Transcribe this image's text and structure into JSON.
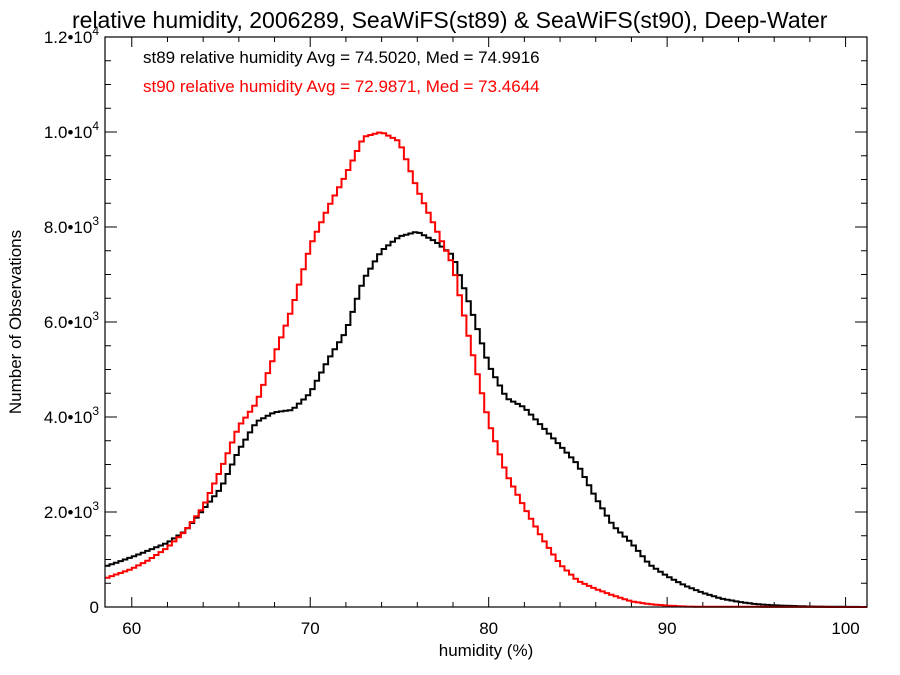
{
  "chart_data": {
    "type": "step",
    "title": "relative humidity, 2006289, SeaWiFS(st89) & SeaWiFS(st90), Deep-Water",
    "xlabel": "humidity (%)",
    "ylabel": "Number of Observations",
    "xlim": [
      58.5,
      101.2
    ],
    "ylim": [
      0,
      12000
    ],
    "x_ticks": [
      {
        "value": 60,
        "label": "60"
      },
      {
        "value": 70,
        "label": "70"
      },
      {
        "value": 80,
        "label": "80"
      },
      {
        "value": 90,
        "label": "90"
      },
      {
        "value": 100,
        "label": "100"
      }
    ],
    "y_ticks": [
      {
        "value": 0,
        "label": "0"
      },
      {
        "value": 2000,
        "mant": "2.0•10",
        "exp": "3"
      },
      {
        "value": 4000,
        "mant": "4.0•10",
        "exp": "3"
      },
      {
        "value": 6000,
        "mant": "6.0•10",
        "exp": "3"
      },
      {
        "value": 8000,
        "mant": "8.0•10",
        "exp": "3"
      },
      {
        "value": 10000,
        "mant": "1.0•10",
        "exp": "4"
      },
      {
        "value": 12000,
        "mant": "1.2•10",
        "exp": "4"
      }
    ],
    "bin_width": 0.25,
    "series": [
      {
        "name": "st89",
        "color": "#000000",
        "annotation": "st89 relative humidity Avg = 74.5020, Med = 74.9916",
        "points": [
          [
            58.5,
            850
          ],
          [
            60,
            1050
          ],
          [
            62,
            1350
          ],
          [
            63,
            1600
          ],
          [
            64,
            2050
          ],
          [
            65,
            2500
          ],
          [
            66,
            3300
          ],
          [
            67,
            3900
          ],
          [
            68,
            4100
          ],
          [
            69,
            4150
          ],
          [
            70,
            4500
          ],
          [
            71,
            5200
          ],
          [
            72,
            5800
          ],
          [
            73,
            6900
          ],
          [
            74,
            7500
          ],
          [
            75,
            7800
          ],
          [
            76,
            7900
          ],
          [
            77,
            7700
          ],
          [
            78,
            7400
          ],
          [
            79,
            6300
          ],
          [
            80,
            5100
          ],
          [
            81,
            4400
          ],
          [
            82,
            4200
          ],
          [
            83,
            3800
          ],
          [
            84,
            3400
          ],
          [
            85,
            3000
          ],
          [
            86,
            2300
          ],
          [
            87,
            1700
          ],
          [
            88,
            1350
          ],
          [
            89,
            900
          ],
          [
            90,
            650
          ],
          [
            91,
            450
          ],
          [
            92,
            300
          ],
          [
            93,
            180
          ],
          [
            94,
            110
          ],
          [
            95,
            60
          ],
          [
            96,
            35
          ],
          [
            98,
            10
          ],
          [
            101,
            0
          ]
        ]
      },
      {
        "name": "st90",
        "color": "#ff0000",
        "annotation": "st90 relative humidity Avg = 72.9871, Med = 73.4644",
        "points": [
          [
            58.5,
            600
          ],
          [
            60,
            800
          ],
          [
            61,
            1000
          ],
          [
            62,
            1250
          ],
          [
            63,
            1600
          ],
          [
            64,
            2100
          ],
          [
            65,
            2900
          ],
          [
            66,
            3800
          ],
          [
            67,
            4300
          ],
          [
            68,
            5300
          ],
          [
            69,
            6300
          ],
          [
            70,
            7600
          ],
          [
            71,
            8400
          ],
          [
            72,
            9100
          ],
          [
            73,
            9900
          ],
          [
            74,
            10000
          ],
          [
            75,
            9800
          ],
          [
            76,
            8800
          ],
          [
            77,
            8000
          ],
          [
            78,
            7200
          ],
          [
            79,
            5500
          ],
          [
            80,
            3900
          ],
          [
            81,
            2800
          ],
          [
            82,
            2100
          ],
          [
            83,
            1450
          ],
          [
            84,
            900
          ],
          [
            85,
            550
          ],
          [
            86,
            380
          ],
          [
            87,
            240
          ],
          [
            88,
            120
          ],
          [
            89,
            60
          ],
          [
            90,
            30
          ],
          [
            91,
            10
          ],
          [
            92,
            5
          ],
          [
            101,
            0
          ]
        ]
      }
    ]
  }
}
